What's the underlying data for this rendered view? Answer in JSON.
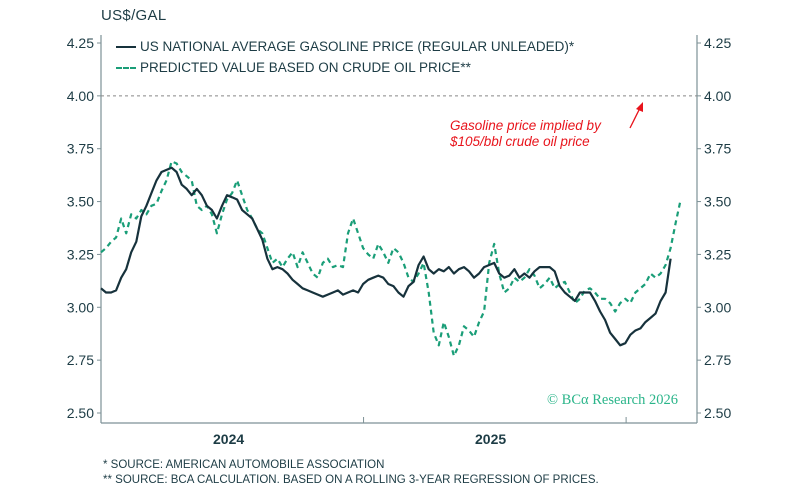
{
  "chart_data": {
    "type": "line",
    "title": "",
    "ylabel": "US$/GAL",
    "xlabel": "",
    "ylim": [
      2.5,
      4.25
    ],
    "xlim": [
      2024.0,
      2026.27
    ],
    "yticks": [
      "2.50",
      "2.75",
      "3.00",
      "3.25",
      "3.50",
      "3.75",
      "4.00",
      "4.25"
    ],
    "xtick_labels": [
      "2024",
      "2025"
    ],
    "grid": false,
    "legend_position": "top-left",
    "reference_line": {
      "value": 4.0,
      "style": "dashed"
    },
    "annotation": {
      "lines": [
        "Gasoline price implied by",
        "$105/bbl crude oil price"
      ],
      "color": "#e8141c",
      "arrow_target": "reference line at 4.00"
    },
    "series": [
      {
        "name": "US NATIONAL AVERAGE GASOLINE PRICE (REGULAR UNLEADED)*",
        "style": "solid",
        "color": "#17323c",
        "x_start": 2024.0,
        "x_step_years": 0.0192,
        "values": [
          3.09,
          3.07,
          3.07,
          3.08,
          3.14,
          3.18,
          3.26,
          3.31,
          3.43,
          3.48,
          3.54,
          3.6,
          3.64,
          3.65,
          3.66,
          3.64,
          3.58,
          3.56,
          3.53,
          3.56,
          3.53,
          3.48,
          3.46,
          3.42,
          3.48,
          3.53,
          3.52,
          3.51,
          3.46,
          3.44,
          3.42,
          3.37,
          3.32,
          3.23,
          3.18,
          3.19,
          3.18,
          3.16,
          3.13,
          3.11,
          3.09,
          3.08,
          3.07,
          3.06,
          3.05,
          3.06,
          3.07,
          3.08,
          3.06,
          3.07,
          3.08,
          3.07,
          3.11,
          3.13,
          3.14,
          3.15,
          3.14,
          3.11,
          3.1,
          3.07,
          3.05,
          3.1,
          3.12,
          3.2,
          3.24,
          3.18,
          3.16,
          3.18,
          3.17,
          3.19,
          3.16,
          3.18,
          3.19,
          3.17,
          3.14,
          3.16,
          3.19,
          3.2,
          3.21,
          3.16,
          3.14,
          3.15,
          3.18,
          3.14,
          3.16,
          3.14,
          3.17,
          3.19,
          3.19,
          3.19,
          3.17,
          3.1,
          3.07,
          3.05,
          3.03,
          3.07,
          3.07,
          3.07,
          3.03,
          2.98,
          2.94,
          2.88,
          2.85,
          2.82,
          2.83,
          2.87,
          2.89,
          2.9,
          2.93,
          2.95,
          2.97,
          3.03,
          3.07,
          3.23
        ]
      },
      {
        "name": "PREDICTED VALUE BASED ON CRUDE OIL PRICE**",
        "style": "dashed",
        "color": "#1a9e78",
        "x_start": 2024.0,
        "x_step_years": 0.0192,
        "values": [
          3.26,
          3.28,
          3.31,
          3.33,
          3.42,
          3.35,
          3.44,
          3.42,
          3.46,
          3.44,
          3.48,
          3.49,
          3.55,
          3.6,
          3.69,
          3.68,
          3.64,
          3.62,
          3.6,
          3.48,
          3.46,
          3.48,
          3.44,
          3.35,
          3.44,
          3.51,
          3.54,
          3.6,
          3.53,
          3.46,
          3.42,
          3.37,
          3.35,
          3.28,
          3.21,
          3.23,
          3.19,
          3.23,
          3.26,
          3.19,
          3.26,
          3.21,
          3.16,
          3.14,
          3.21,
          3.23,
          3.19,
          3.2,
          3.19,
          3.35,
          3.42,
          3.35,
          3.28,
          3.25,
          3.23,
          3.3,
          3.26,
          3.21,
          3.28,
          3.26,
          3.21,
          3.14,
          3.12,
          3.16,
          3.21,
          3.07,
          2.88,
          2.82,
          2.93,
          2.86,
          2.77,
          2.82,
          2.91,
          2.89,
          2.86,
          2.93,
          2.98,
          3.21,
          3.3,
          3.16,
          3.07,
          3.09,
          3.14,
          3.12,
          3.14,
          3.18,
          3.15,
          3.09,
          3.11,
          3.14,
          3.09,
          3.11,
          3.12,
          3.07,
          3.02,
          3.04,
          3.08,
          3.09,
          3.07,
          3.04,
          3.04,
          3.02,
          2.98,
          3.02,
          3.04,
          3.02,
          3.07,
          3.09,
          3.11,
          3.16,
          3.14,
          3.16,
          3.2,
          3.28,
          3.4,
          3.51
        ]
      }
    ]
  },
  "header": {
    "unit_label": "US$/GAL"
  },
  "legend": {
    "items": [
      {
        "label": "US NATIONAL AVERAGE GASOLINE PRICE (REGULAR UNLEADED)*"
      },
      {
        "label": "PREDICTED VALUE BASED ON CRUDE OIL PRICE**"
      }
    ]
  },
  "annotation": {
    "line1": "Gasoline price implied by",
    "line2": "$105/bbl crude oil price"
  },
  "x_axis": {
    "year_2024": "2024",
    "year_2025": "2025"
  },
  "copyright": "© BCα Research 2026",
  "footnotes": {
    "note1": "* SOURCE: AMERICAN AUTOMOBILE ASSOCIATION",
    "note2": "** SOURCE: BCA CALCULATION. BASED ON A ROLLING 3-YEAR REGRESSION OF PRICES."
  }
}
